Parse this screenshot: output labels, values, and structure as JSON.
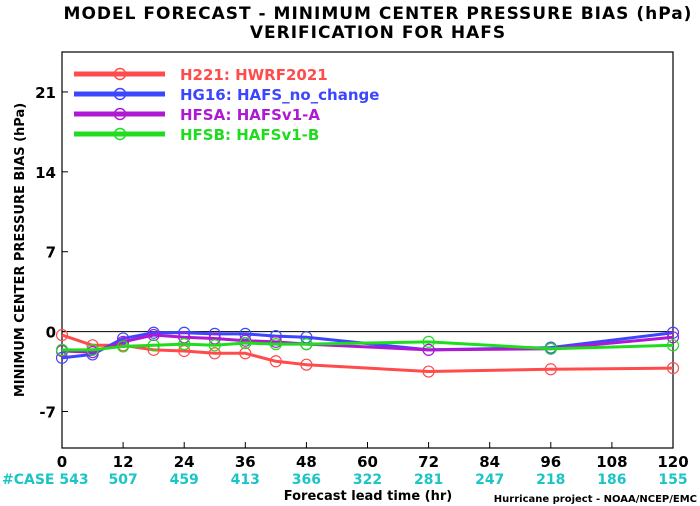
{
  "chart_data": {
    "type": "line",
    "title": "MODEL FORECAST - MINIMUM CENTER PRESSURE BIAS (hPa)",
    "subtitle": "VERIFICATION FOR HAFS",
    "xlabel": "Forecast lead time (hr)",
    "ylabel": "MINIMUM CENTER PRESSURE BIAS (hPa)",
    "xlim": [
      0,
      120
    ],
    "ylim": [
      -10.2,
      24.5
    ],
    "xticks": [
      0,
      12,
      24,
      36,
      48,
      60,
      72,
      84,
      96,
      108,
      120
    ],
    "yticks": [
      -7,
      0,
      7,
      14,
      21
    ],
    "zero_line": true,
    "legend_position": "top-left",
    "series": [
      {
        "name": "H221: HWRF2021",
        "color": "#ff4b4b",
        "x": [
          0,
          6,
          12,
          18,
          24,
          30,
          36,
          42,
          48,
          72,
          96,
          120
        ],
        "y": [
          -0.3,
          -1.2,
          -1.2,
          -1.6,
          -1.7,
          -1.9,
          -1.9,
          -2.6,
          -2.9,
          -3.5,
          -3.3,
          -3.2
        ]
      },
      {
        "name": "HG16: HAFS_no_change",
        "color": "#3c46ff",
        "x": [
          0,
          6,
          12,
          18,
          24,
          30,
          36,
          42,
          48,
          72,
          96,
          120
        ],
        "y": [
          -2.3,
          -2.0,
          -0.6,
          -0.1,
          -0.1,
          -0.2,
          -0.2,
          -0.4,
          -0.5,
          -1.6,
          -1.4,
          -0.1
        ]
      },
      {
        "name": "HFSA: HAFSv1-A",
        "color": "#b019d2",
        "x": [
          0,
          6,
          12,
          18,
          24,
          30,
          36,
          42,
          48,
          72,
          96,
          120
        ],
        "y": [
          -1.7,
          -1.8,
          -0.9,
          -0.3,
          -0.5,
          -0.6,
          -0.8,
          -0.9,
          -1.1,
          -1.6,
          -1.5,
          -0.5
        ]
      },
      {
        "name": "HFSB: HAFSv1-B",
        "color": "#1fdc1f",
        "x": [
          0,
          6,
          12,
          18,
          24,
          30,
          36,
          42,
          48,
          72,
          96,
          120
        ],
        "y": [
          -1.6,
          -1.6,
          -1.3,
          -1.2,
          -1.1,
          -1.2,
          -1.0,
          -1.1,
          -1.1,
          -0.9,
          -1.5,
          -1.2
        ]
      }
    ],
    "case_label": "#CASE",
    "case_counts": [
      543,
      507,
      459,
      413,
      366,
      322,
      281,
      247,
      218,
      186,
      155
    ],
    "credit": "Hurricane project - NOAA/NCEP/EMC"
  }
}
